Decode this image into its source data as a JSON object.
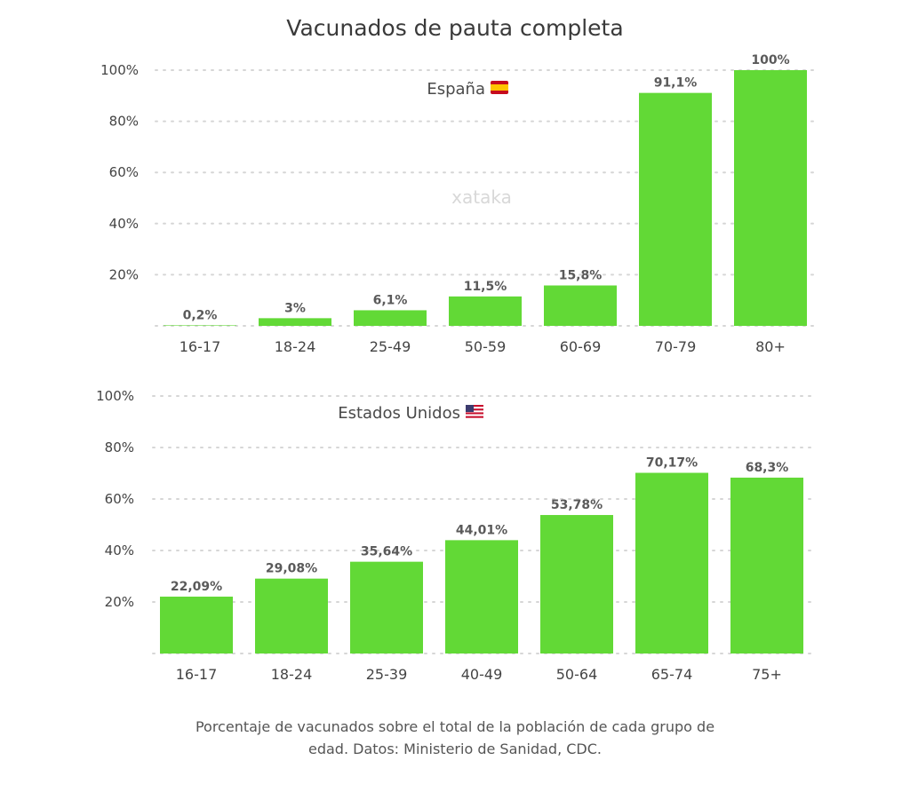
{
  "title": "Vacunados de pauta completa",
  "watermark": "xataka",
  "caption": [
    "Porcentaje de vacunados sobre el total de la población de cada grupo de",
    "edad. Datos: Ministerio de Sanidad, CDC."
  ],
  "colors": {
    "bar": "#62d936",
    "grid": "#d6d6d6"
  },
  "chart_data": [
    {
      "type": "bar",
      "title": "España",
      "flag": "spain-flag-icon",
      "categories": [
        "16-17",
        "18-24",
        "25-49",
        "50-59",
        "60-69",
        "70-79",
        "80+"
      ],
      "values": [
        0.2,
        3,
        6.1,
        11.5,
        15.8,
        91.1,
        100
      ],
      "labels": [
        "0,2%",
        "3%",
        "6,1%",
        "11,5%",
        "15,8%",
        "91,1%",
        "100%"
      ],
      "yticks": [
        "20%",
        "40%",
        "60%",
        "80%",
        "100%"
      ],
      "ylim": [
        0,
        100
      ],
      "grid": true
    },
    {
      "type": "bar",
      "title": "Estados Unidos",
      "flag": "usa-flag-icon",
      "categories": [
        "16-17",
        "18-24",
        "25-39",
        "40-49",
        "50-64",
        "65-74",
        "75+"
      ],
      "values": [
        22.09,
        29.08,
        35.64,
        44.01,
        53.78,
        70.17,
        68.3
      ],
      "labels": [
        "22,09%",
        "29,08%",
        "35,64%",
        "44,01%",
        "53,78%",
        "70,17%",
        "68,3%"
      ],
      "yticks": [
        "20%",
        "40%",
        "60%",
        "80%",
        "100%"
      ],
      "ylim": [
        0,
        100
      ],
      "grid": true
    }
  ]
}
